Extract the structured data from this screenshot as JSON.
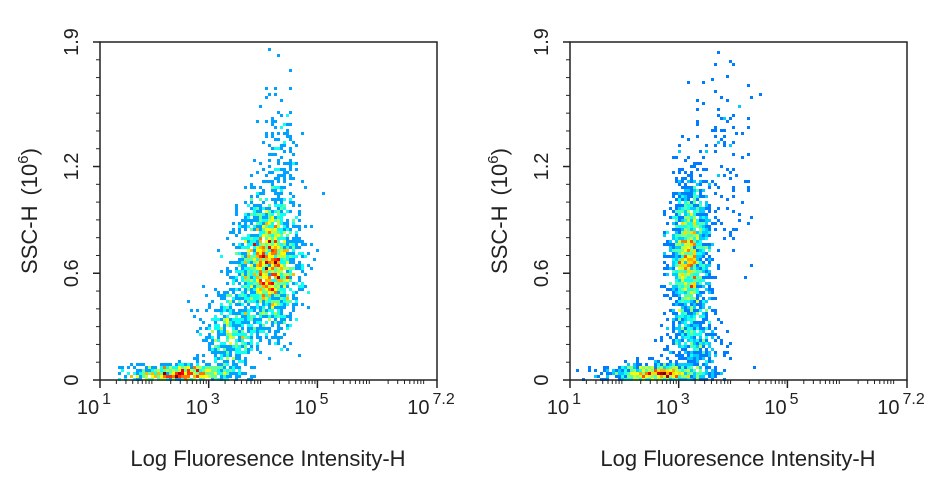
{
  "chart_data": [
    {
      "type": "scatter",
      "xlabel": "Log Fluoresence Intensity-H",
      "ylabel": "SSC-H",
      "ylabel_unit": "(10",
      "ylabel_exponent": "6",
      "ylabel_close": ")",
      "xscale": "log",
      "xlim": [
        1,
        7.2
      ],
      "ylim": [
        0,
        1.9
      ],
      "x_ticks": [
        {
          "base": "10",
          "exp": "1",
          "value": 1
        },
        {
          "base": "10",
          "exp": "3",
          "value": 3
        },
        {
          "base": "10",
          "exp": "5",
          "value": 5
        },
        {
          "base": "10",
          "exp": "7.2",
          "value": 7.2
        }
      ],
      "y_ticks": [
        {
          "label": "0",
          "value": 0
        },
        {
          "label": "0.6",
          "value": 0.6
        },
        {
          "label": "1.2",
          "value": 1.2
        },
        {
          "label": "1.9",
          "value": 1.9
        }
      ],
      "density_map": "jet",
      "populations": [
        {
          "x_log": 2.5,
          "y": 0.03,
          "sx": 0.45,
          "sy": 0.03,
          "count": 700
        },
        {
          "x_log": 4.1,
          "y": 0.65,
          "sx": 0.28,
          "sy": 0.18,
          "count": 2000
        },
        {
          "x_log": 3.4,
          "y": 0.25,
          "sx": 0.25,
          "sy": 0.12,
          "count": 450
        },
        {
          "x_log": 4.3,
          "y": 1.2,
          "sx": 0.18,
          "sy": 0.22,
          "count": 150
        }
      ]
    },
    {
      "type": "scatter",
      "xlabel": "Log Fluoresence Intensity-H",
      "ylabel": "SSC-H",
      "ylabel_unit": "(10",
      "ylabel_exponent": "6",
      "ylabel_close": ")",
      "xscale": "log",
      "xlim": [
        1,
        7.2
      ],
      "ylim": [
        0,
        1.9
      ],
      "x_ticks": [
        {
          "base": "10",
          "exp": "1",
          "value": 1
        },
        {
          "base": "10",
          "exp": "3",
          "value": 3
        },
        {
          "base": "10",
          "exp": "5",
          "value": 5
        },
        {
          "base": "10",
          "exp": "7.2",
          "value": 7.2
        }
      ],
      "y_ticks": [
        {
          "label": "0",
          "value": 0
        },
        {
          "label": "0.6",
          "value": 0.6
        },
        {
          "label": "1.2",
          "value": 1.2
        },
        {
          "label": "1.9",
          "value": 1.9
        }
      ],
      "density_map": "jet",
      "populations": [
        {
          "x_log": 2.6,
          "y": 0.03,
          "sx": 0.45,
          "sy": 0.03,
          "count": 900
        },
        {
          "x_log": 3.2,
          "y": 0.7,
          "sx": 0.18,
          "sy": 0.2,
          "count": 1700
        },
        {
          "x_log": 3.3,
          "y": 0.2,
          "sx": 0.25,
          "sy": 0.1,
          "count": 350
        },
        {
          "x_log": 3.8,
          "y": 1.2,
          "sx": 0.3,
          "sy": 0.3,
          "count": 120
        }
      ]
    }
  ]
}
